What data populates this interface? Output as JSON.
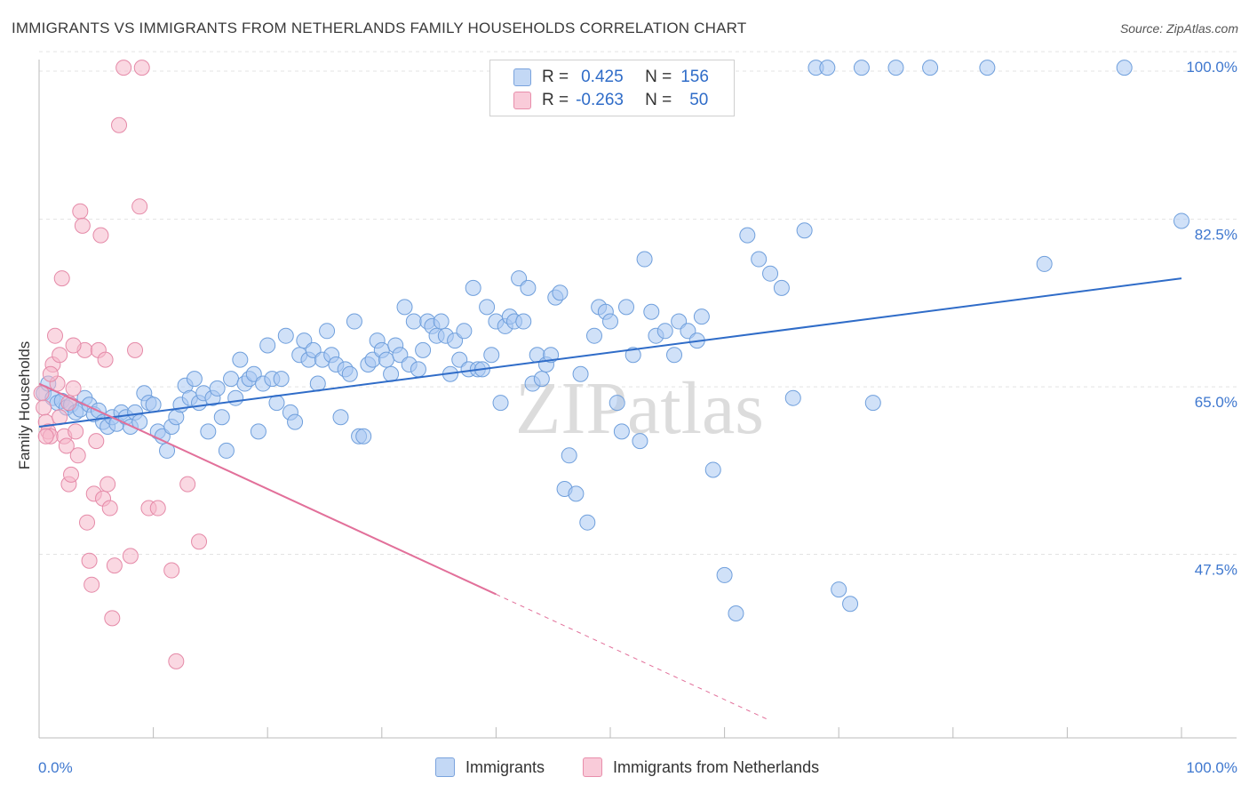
{
  "title": "IMMIGRANTS VS IMMIGRANTS FROM NETHERLANDS FAMILY HOUSEHOLDS CORRELATION CHART",
  "source": "Source: ZipAtlas.com",
  "legend_top": [
    {
      "r_label": "R =",
      "r_value": "0.425",
      "n_label": "N =",
      "n_value": "156",
      "color": "#a9c9f2"
    },
    {
      "r_label": "R =",
      "r_value": "-0.263",
      "n_label": "N =",
      "n_value": "50",
      "color": "#f6b8cb"
    }
  ],
  "legend_bottom": [
    {
      "label": "Immigrants",
      "color": "#a9c9f2"
    },
    {
      "label": "Immigrants from Netherlands",
      "color": "#f6b8cb"
    }
  ],
  "watermark": "ZIPatlas",
  "chart_data": {
    "type": "scatter",
    "title": "IMMIGRANTS VS IMMIGRANTS FROM NETHERLANDS FAMILY HOUSEHOLDS CORRELATION CHART",
    "xlabel": "",
    "ylabel": "Family Households",
    "xlim": [
      0,
      100
    ],
    "ylim": [
      30,
      101.5
    ],
    "x_tick_labels": [
      "0.0%",
      "100.0%"
    ],
    "y_tick_labels": [
      "100.0%",
      "82.5%",
      "65.0%",
      "47.5%"
    ],
    "y_tick_values": [
      100,
      82.5,
      65,
      47.5
    ],
    "grid": true,
    "series": [
      {
        "name": "Immigrants",
        "color": "#a9c9f2",
        "stroke": "#6f9fdc",
        "trend": {
          "x": [
            0,
            100
          ],
          "y": [
            62.5,
            78.0
          ],
          "color": "#2f6cc8"
        },
        "points": [
          [
            0.4,
            66.0
          ],
          [
            0.8,
            67.0
          ],
          [
            1.2,
            65.5
          ],
          [
            1.6,
            65.0
          ],
          [
            2.0,
            65.2
          ],
          [
            2.4,
            64.5
          ],
          [
            2.8,
            64.8
          ],
          [
            3.2,
            64.0
          ],
          [
            3.6,
            64.3
          ],
          [
            4.0,
            65.5
          ],
          [
            4.4,
            64.8
          ],
          [
            4.8,
            63.8
          ],
          [
            5.2,
            64.2
          ],
          [
            5.6,
            63.0
          ],
          [
            6.0,
            62.5
          ],
          [
            6.4,
            63.5
          ],
          [
            6.8,
            62.8
          ],
          [
            7.2,
            64.0
          ],
          [
            7.6,
            63.5
          ],
          [
            8.0,
            62.5
          ],
          [
            8.4,
            64.0
          ],
          [
            8.8,
            63.0
          ],
          [
            9.2,
            66.0
          ],
          [
            9.6,
            65.0
          ],
          [
            10.0,
            64.8
          ],
          [
            10.4,
            62.0
          ],
          [
            10.8,
            61.5
          ],
          [
            11.2,
            60.0
          ],
          [
            11.6,
            62.5
          ],
          [
            12.0,
            63.5
          ],
          [
            12.4,
            64.8
          ],
          [
            12.8,
            66.8
          ],
          [
            13.2,
            65.5
          ],
          [
            13.6,
            67.5
          ],
          [
            14.0,
            65.0
          ],
          [
            14.4,
            66.0
          ],
          [
            14.8,
            62.0
          ],
          [
            15.2,
            65.5
          ],
          [
            15.6,
            66.5
          ],
          [
            16.0,
            63.5
          ],
          [
            16.4,
            60.0
          ],
          [
            16.8,
            67.5
          ],
          [
            17.2,
            65.5
          ],
          [
            17.6,
            69.5
          ],
          [
            18.0,
            67.0
          ],
          [
            18.4,
            67.5
          ],
          [
            18.8,
            68.0
          ],
          [
            19.2,
            62.0
          ],
          [
            19.6,
            67.0
          ],
          [
            20.0,
            71.0
          ],
          [
            20.4,
            67.5
          ],
          [
            20.8,
            65.0
          ],
          [
            21.2,
            67.5
          ],
          [
            21.6,
            72.0
          ],
          [
            22.0,
            64.0
          ],
          [
            22.4,
            63.0
          ],
          [
            22.8,
            70.0
          ],
          [
            23.2,
            71.5
          ],
          [
            23.6,
            69.5
          ],
          [
            24.0,
            70.5
          ],
          [
            24.4,
            67.0
          ],
          [
            24.8,
            69.5
          ],
          [
            25.2,
            72.5
          ],
          [
            25.6,
            70.0
          ],
          [
            26.0,
            69.0
          ],
          [
            26.4,
            63.5
          ],
          [
            26.8,
            68.5
          ],
          [
            27.2,
            68.0
          ],
          [
            27.6,
            73.5
          ],
          [
            28.0,
            61.5
          ],
          [
            28.4,
            61.5
          ],
          [
            28.8,
            69.0
          ],
          [
            29.2,
            69.5
          ],
          [
            29.6,
            71.5
          ],
          [
            30.0,
            70.5
          ],
          [
            30.4,
            69.5
          ],
          [
            30.8,
            68.0
          ],
          [
            31.2,
            71.0
          ],
          [
            31.6,
            70.0
          ],
          [
            32.0,
            75.0
          ],
          [
            32.4,
            69.0
          ],
          [
            32.8,
            73.5
          ],
          [
            33.2,
            68.5
          ],
          [
            33.6,
            70.5
          ],
          [
            34.0,
            73.5
          ],
          [
            34.4,
            73.0
          ],
          [
            34.8,
            72.0
          ],
          [
            35.2,
            73.5
          ],
          [
            35.6,
            72.0
          ],
          [
            36.0,
            68.0
          ],
          [
            36.4,
            71.5
          ],
          [
            36.8,
            69.5
          ],
          [
            37.2,
            72.5
          ],
          [
            37.6,
            68.5
          ],
          [
            38.0,
            77.0
          ],
          [
            38.4,
            68.5
          ],
          [
            38.8,
            68.5
          ],
          [
            39.2,
            75.0
          ],
          [
            39.6,
            70.0
          ],
          [
            40.0,
            73.5
          ],
          [
            40.4,
            65.0
          ],
          [
            40.8,
            73.0
          ],
          [
            41.2,
            74.0
          ],
          [
            41.6,
            73.5
          ],
          [
            42.0,
            78.0
          ],
          [
            42.4,
            73.5
          ],
          [
            42.8,
            77.0
          ],
          [
            43.2,
            67.0
          ],
          [
            43.6,
            70.0
          ],
          [
            44.0,
            67.5
          ],
          [
            44.4,
            69.0
          ],
          [
            44.8,
            70.0
          ],
          [
            45.2,
            76.0
          ],
          [
            45.6,
            76.5
          ],
          [
            46.0,
            56.0
          ],
          [
            46.4,
            59.5
          ],
          [
            47.0,
            55.5
          ],
          [
            47.4,
            68.0
          ],
          [
            48.0,
            52.5
          ],
          [
            48.6,
            72.0
          ],
          [
            49.0,
            75.0
          ],
          [
            49.6,
            74.5
          ],
          [
            50.0,
            73.5
          ],
          [
            50.6,
            65.0
          ],
          [
            51.0,
            62.0
          ],
          [
            51.4,
            75.0
          ],
          [
            52.0,
            70.0
          ],
          [
            52.6,
            61.0
          ],
          [
            53.0,
            80.0
          ],
          [
            53.6,
            74.5
          ],
          [
            54.0,
            72.0
          ],
          [
            54.8,
            72.5
          ],
          [
            55.6,
            70.0
          ],
          [
            56.0,
            73.5
          ],
          [
            56.8,
            72.5
          ],
          [
            57.6,
            71.5
          ],
          [
            58.0,
            74.0
          ],
          [
            59.0,
            58.0
          ],
          [
            60.0,
            47.0
          ],
          [
            61.0,
            43.0
          ],
          [
            62.0,
            82.5
          ],
          [
            63.0,
            80.0
          ],
          [
            64.0,
            78.5
          ],
          [
            65.0,
            77.0
          ],
          [
            66.0,
            65.5
          ],
          [
            67.0,
            83.0
          ],
          [
            68.0,
            100.0
          ],
          [
            69.0,
            100.0
          ],
          [
            70.0,
            45.5
          ],
          [
            71.0,
            44.0
          ],
          [
            72.0,
            100.0
          ],
          [
            73.0,
            65.0
          ],
          [
            75.0,
            100.0
          ],
          [
            78.0,
            100.0
          ],
          [
            83.0,
            100.0
          ],
          [
            88.0,
            79.5
          ],
          [
            95.0,
            100.0
          ],
          [
            100.0,
            84.0
          ]
        ]
      },
      {
        "name": "Immigrants from Netherlands",
        "color": "#f6b8cb",
        "stroke": "#e58aa8",
        "trend": {
          "x": [
            0,
            40
          ],
          "y": [
            67.0,
            45.0
          ],
          "color": "#e2709a",
          "dashed_to": [
            64,
            31.8
          ]
        },
        "points": [
          [
            0.2,
            66.0
          ],
          [
            0.4,
            64.5
          ],
          [
            0.6,
            63.0
          ],
          [
            0.8,
            62.0
          ],
          [
            1.0,
            61.5
          ],
          [
            1.2,
            69.0
          ],
          [
            1.4,
            72.0
          ],
          [
            1.6,
            67.0
          ],
          [
            1.8,
            70.0
          ],
          [
            2.0,
            78.0
          ],
          [
            2.2,
            61.5
          ],
          [
            2.4,
            60.5
          ],
          [
            2.6,
            56.5
          ],
          [
            2.8,
            57.5
          ],
          [
            3.0,
            66.5
          ],
          [
            3.2,
            62.0
          ],
          [
            3.4,
            59.5
          ],
          [
            3.6,
            85.0
          ],
          [
            3.8,
            83.5
          ],
          [
            4.0,
            70.5
          ],
          [
            4.2,
            52.5
          ],
          [
            4.4,
            48.5
          ],
          [
            4.6,
            46.0
          ],
          [
            4.8,
            55.5
          ],
          [
            5.0,
            61.0
          ],
          [
            5.2,
            70.5
          ],
          [
            5.4,
            82.5
          ],
          [
            5.6,
            55.0
          ],
          [
            5.8,
            69.5
          ],
          [
            6.0,
            56.5
          ],
          [
            6.2,
            54.0
          ],
          [
            6.4,
            42.5
          ],
          [
            6.6,
            48.0
          ],
          [
            7.0,
            94.0
          ],
          [
            7.4,
            100.0
          ],
          [
            8.0,
            49.0
          ],
          [
            8.4,
            70.5
          ],
          [
            8.8,
            85.5
          ],
          [
            9.0,
            100.0
          ],
          [
            9.6,
            54.0
          ],
          [
            10.4,
            54.0
          ],
          [
            11.6,
            47.5
          ],
          [
            12.0,
            38.0
          ],
          [
            13.0,
            56.5
          ],
          [
            14.0,
            50.5
          ],
          [
            1.0,
            68.0
          ],
          [
            2.6,
            65.0
          ],
          [
            3.0,
            71.0
          ],
          [
            1.8,
            63.5
          ],
          [
            0.6,
            61.5
          ]
        ]
      }
    ]
  }
}
